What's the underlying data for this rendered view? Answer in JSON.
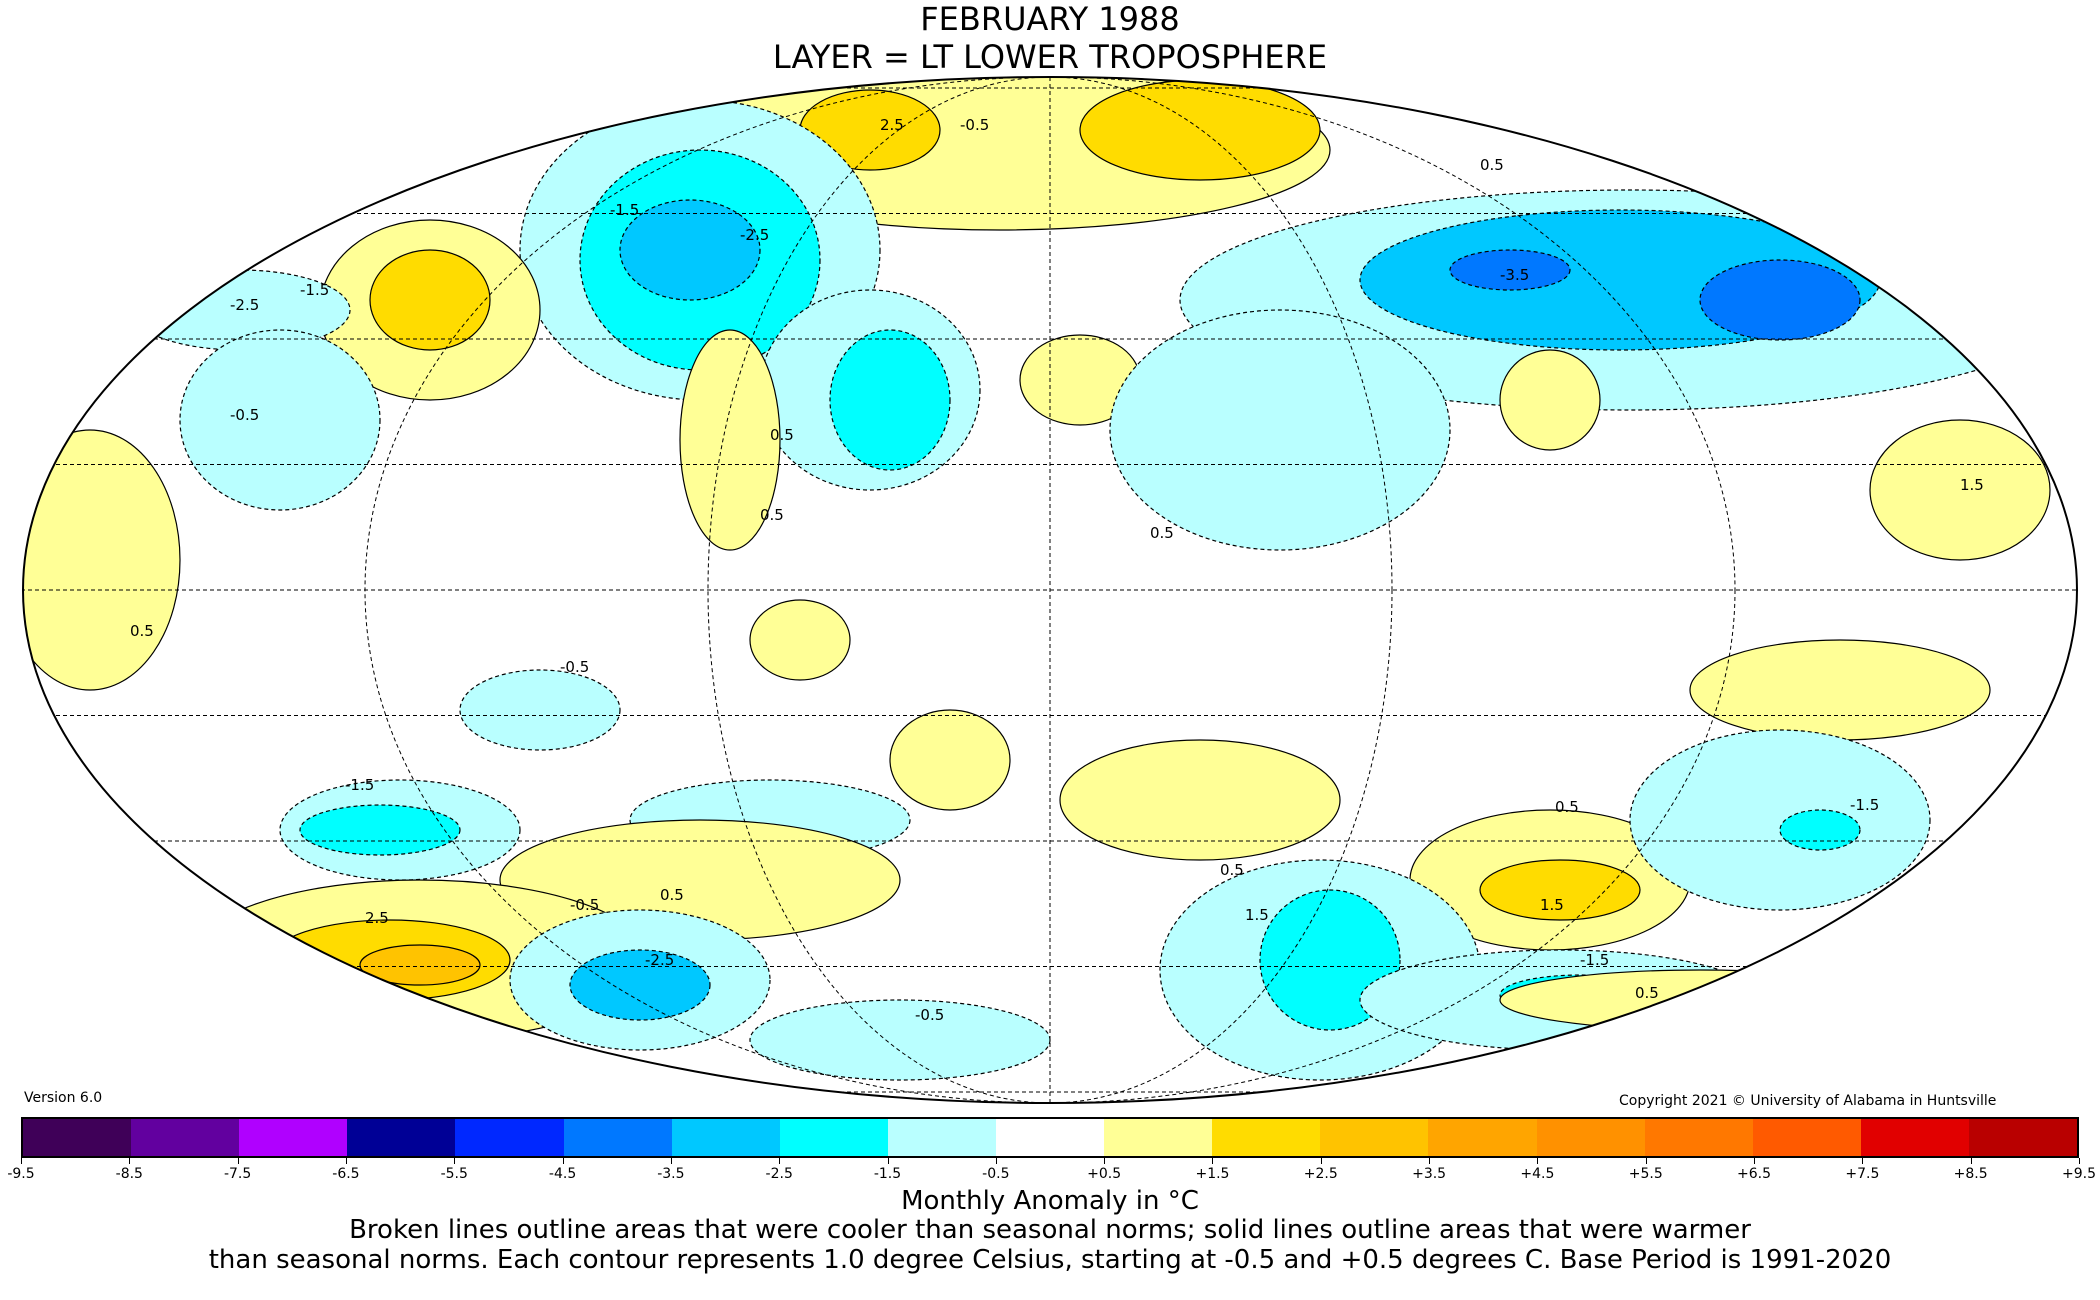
{
  "title": {
    "line1": "FEBRUARY 1988",
    "line2": "LAYER = LT LOWER TROPOSPHERE"
  },
  "version": "Version 6.0",
  "copyright": "Copyright 2021 © University of Alabama in Huntsville",
  "projection": "mollweide",
  "colorbar": {
    "ticks": [
      "-9.5",
      "-8.5",
      "-7.5",
      "-6.5",
      "-5.5",
      "-4.5",
      "-3.5",
      "-2.5",
      "-1.5",
      "-0.5",
      "+0.5",
      "+1.5",
      "+2.5",
      "+3.5",
      "+4.5",
      "+5.5",
      "+6.5",
      "+7.5",
      "+8.5",
      "+9.5"
    ],
    "colors": [
      "#3f0058",
      "#62009f",
      "#b000ff",
      "#000096",
      "#0028ff",
      "#0078ff",
      "#00c8ff",
      "#00ffff",
      "#b9ffff",
      "#ffffff",
      "#ffff96",
      "#ffdc00",
      "#ffc300",
      "#ffa500",
      "#ff9100",
      "#ff7800",
      "#ff5a00",
      "#e10000",
      "#b90000"
    ]
  },
  "legend": {
    "title": "Monthly Anomaly in °C",
    "note1": "Broken lines outline areas that were cooler than seasonal norms; solid lines outline areas that were warmer",
    "note2": "than seasonal norms. Each contour represents 1.0 degree Celsius, starting at -0.5 and +0.5 degrees C. Base Period is 1991-2020"
  },
  "contour_labels": [
    "2.5",
    "-0.5",
    "-1.5",
    "-2.5",
    "-3.5",
    "0.5",
    "1.5",
    "-0.5",
    "0.5",
    "-2.5",
    "-1.5",
    "-0.5",
    "0.5",
    "0.5",
    "0.5",
    "-0.5",
    "-1.5",
    "2.5",
    "-2.5",
    "1.5",
    "0.5",
    "-1.5",
    "-0.5",
    "0.5",
    "0.5",
    "1.5",
    "-1.5",
    "0.5"
  ]
}
